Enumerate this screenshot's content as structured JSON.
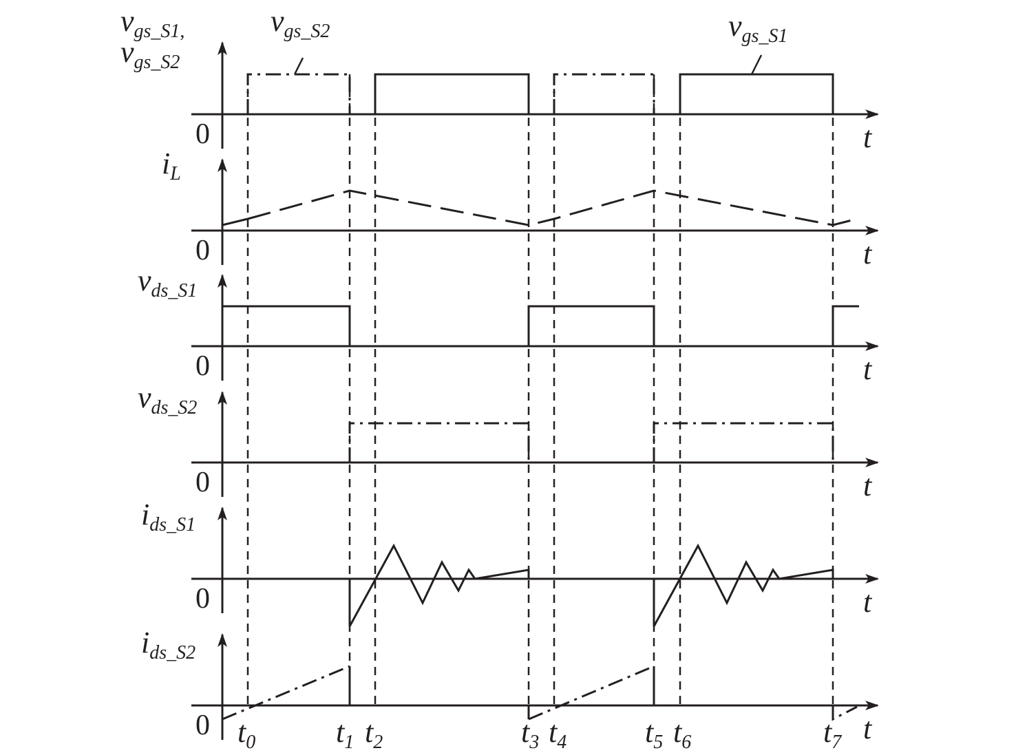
{
  "panels": [
    {
      "label": [
        {
          "base": "v",
          "sub": "gs_S1,"
        },
        {
          "base": "v",
          "sub": "gs_S2"
        }
      ],
      "zero": "0",
      "axis": "t"
    },
    {
      "label": [
        {
          "base": "i",
          "sub": "L"
        }
      ],
      "zero": "0",
      "axis": "t"
    },
    {
      "label": [
        {
          "base": "v",
          "sub": "ds_S1"
        }
      ],
      "zero": "0",
      "axis": "t"
    },
    {
      "label": [
        {
          "base": "v",
          "sub": "ds_S2"
        }
      ],
      "zero": "0",
      "axis": "t"
    },
    {
      "label": [
        {
          "base": "i",
          "sub": "ds_S1"
        }
      ],
      "zero": "0",
      "axis": "t"
    },
    {
      "label": [
        {
          "base": "i",
          "sub": "ds_S2"
        }
      ],
      "zero": "0",
      "axis": "t"
    }
  ],
  "annotations": [
    {
      "base": "v",
      "sub": "gs_S2"
    },
    {
      "base": "v",
      "sub": "gs_S1"
    }
  ],
  "time_labels": [
    {
      "base": "t",
      "sub": "0"
    },
    {
      "base": "t",
      "sub": "1"
    },
    {
      "base": "t",
      "sub": "2"
    },
    {
      "base": "t",
      "sub": "3"
    },
    {
      "base": "t",
      "sub": "4"
    },
    {
      "base": "t",
      "sub": "5"
    },
    {
      "base": "t",
      "sub": "6"
    },
    {
      "base": "t",
      "sub": "7"
    }
  ]
}
